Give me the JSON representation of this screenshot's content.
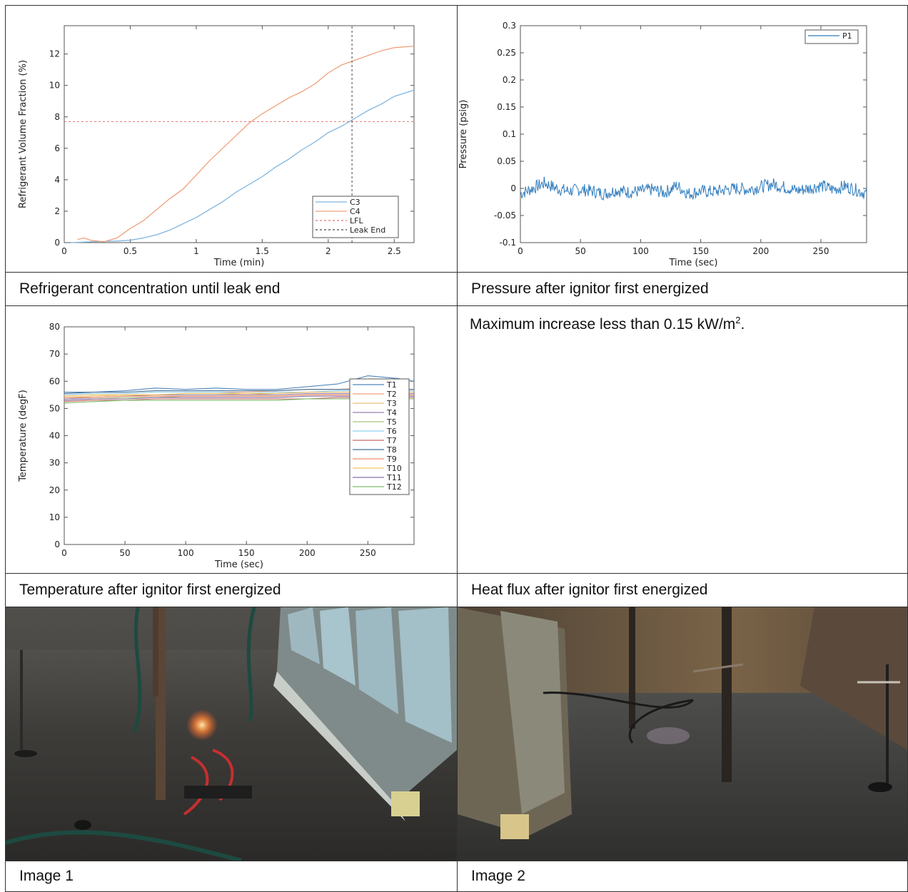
{
  "captions": {
    "concentration": "Refrigerant concentration until leak end",
    "pressure": "Pressure after ignitor first energized",
    "temperature": "Temperature after ignitor first energized",
    "heatflux": "Heat flux after ignitor first energized",
    "image1": "Image 1",
    "image2": "Image 2"
  },
  "heatflux_note": {
    "text": "Maximum increase less than 0.15 kW/m",
    "superscript": "2",
    "suffix": "."
  },
  "chart_data": [
    {
      "type": "line",
      "title": "",
      "xlabel": "Time (min)",
      "ylabel": "Refrigerant Volume Fraction (%)",
      "xlim": [
        0,
        2.65
      ],
      "ylim": [
        0,
        13.8
      ],
      "xticks": [
        0,
        0.5,
        1,
        1.5,
        2,
        2.5
      ],
      "xtick_labels": [
        "0",
        "0.5",
        "1",
        "1.5",
        "2",
        "2.5"
      ],
      "yticks": [
        0,
        2,
        4,
        6,
        8,
        10,
        12
      ],
      "grid": false,
      "legend_position": "lower-right",
      "series": [
        {
          "name": "C3",
          "color": "#7fb5e0",
          "dash": "solid",
          "x": [
            0.05,
            0.2,
            0.4,
            0.5,
            0.6,
            0.7,
            0.8,
            0.9,
            1.0,
            1.1,
            1.2,
            1.3,
            1.4,
            1.5,
            1.6,
            1.7,
            1.8,
            1.9,
            2.0,
            2.1,
            2.2,
            2.3,
            2.4,
            2.5,
            2.65
          ],
          "y": [
            0.0,
            0.05,
            0.1,
            0.15,
            0.3,
            0.5,
            0.8,
            1.2,
            1.6,
            2.1,
            2.6,
            3.2,
            3.7,
            4.2,
            4.8,
            5.3,
            5.9,
            6.4,
            7.0,
            7.4,
            7.9,
            8.4,
            8.8,
            9.3,
            9.7
          ]
        },
        {
          "name": "C4",
          "color": "#f0a07c",
          "dash": "solid",
          "x": [
            0.1,
            0.15,
            0.2,
            0.3,
            0.4,
            0.5,
            0.6,
            0.7,
            0.8,
            0.9,
            1.0,
            1.1,
            1.2,
            1.3,
            1.4,
            1.5,
            1.6,
            1.7,
            1.8,
            1.9,
            2.0,
            2.1,
            2.2,
            2.3,
            2.4,
            2.5,
            2.65
          ],
          "y": [
            0.2,
            0.3,
            0.15,
            0.05,
            0.3,
            0.9,
            1.4,
            2.1,
            2.8,
            3.4,
            4.3,
            5.2,
            6.0,
            6.8,
            7.6,
            8.2,
            8.7,
            9.2,
            9.6,
            10.1,
            10.8,
            11.3,
            11.6,
            11.9,
            12.2,
            12.4,
            12.5
          ]
        },
        {
          "name": "LFL",
          "color": "#e8756a",
          "dash": "dashed",
          "x": [
            0,
            2.65
          ],
          "y": [
            7.7,
            7.7
          ]
        },
        {
          "name": "Leak End",
          "color": "#444444",
          "dash": "dashed",
          "x": [
            2.18,
            2.18
          ],
          "y": [
            0,
            13.8
          ]
        }
      ]
    },
    {
      "type": "line",
      "title": "",
      "xlabel": "Time (sec)",
      "ylabel": "Pressure (psig)",
      "xlim": [
        0,
        288
      ],
      "ylim": [
        -0.1,
        0.3
      ],
      "xticks": [
        0,
        50,
        100,
        150,
        200,
        250
      ],
      "yticks": [
        -0.1,
        -0.05,
        0,
        0.05,
        0.1,
        0.15,
        0.2,
        0.25,
        0.3
      ],
      "ytick_labels": [
        "-0.1",
        "-0.05",
        "0",
        "0.05",
        "0.1",
        "0.15",
        "0.2",
        "0.25",
        "0.3"
      ],
      "grid": false,
      "legend_position": "top-right",
      "series": [
        {
          "name": "P1",
          "color": "#2e7bbd",
          "x": [
            0,
            10,
            20,
            30,
            40,
            50,
            60,
            70,
            80,
            90,
            100,
            110,
            120,
            130,
            140,
            150,
            160,
            170,
            180,
            190,
            200,
            210,
            220,
            230,
            240,
            250,
            260,
            270,
            280,
            288
          ],
          "y": [
            -0.01,
            0.0,
            0.01,
            0.0,
            -0.005,
            -0.002,
            -0.005,
            -0.01,
            -0.003,
            -0.007,
            -0.005,
            -0.002,
            -0.008,
            0.005,
            -0.01,
            -0.005,
            -0.006,
            -0.003,
            0.0,
            -0.002,
            0.003,
            0.008,
            0.002,
            -0.004,
            0.0,
            0.005,
            -0.002,
            0.004,
            -0.003,
            -0.01
          ],
          "noise_amplitude": 0.012
        }
      ]
    },
    {
      "type": "line",
      "title": "",
      "xlabel": "Time (sec)",
      "ylabel": "Temperature (degF)",
      "xlim": [
        0,
        288
      ],
      "ylim": [
        0,
        80
      ],
      "xticks": [
        0,
        50,
        100,
        150,
        200,
        250
      ],
      "yticks": [
        0,
        10,
        20,
        30,
        40,
        50,
        60,
        70,
        80
      ],
      "grid": false,
      "legend_position": "right",
      "x": [
        0,
        25,
        50,
        75,
        100,
        125,
        150,
        175,
        200,
        225,
        250,
        275,
        288
      ],
      "series": [
        {
          "name": "T1",
          "color": "#4f86bd",
          "values": [
            56,
            56,
            56.5,
            57.5,
            57,
            57.5,
            57,
            57,
            58,
            59,
            62,
            61,
            60
          ]
        },
        {
          "name": "T2",
          "color": "#f0a07c",
          "values": [
            55,
            55.5,
            55.5,
            56,
            56,
            56,
            56,
            56.5,
            57,
            57,
            57.5,
            57,
            57
          ]
        },
        {
          "name": "T3",
          "color": "#e8c078",
          "values": [
            54,
            54.5,
            55,
            55,
            55.5,
            55.5,
            55,
            55.5,
            56,
            56,
            56,
            56,
            56
          ]
        },
        {
          "name": "T4",
          "color": "#9a7fb0",
          "values": [
            53.5,
            54,
            54.5,
            55,
            55,
            55,
            55,
            55,
            55.5,
            55.5,
            55.5,
            55.5,
            55.5
          ]
        },
        {
          "name": "T5",
          "color": "#a6c47a",
          "values": [
            53,
            53.5,
            54,
            54,
            54.5,
            54.5,
            54.5,
            54.5,
            55,
            55,
            55,
            55,
            55
          ]
        },
        {
          "name": "T6",
          "color": "#8fd0ec",
          "values": [
            55,
            55.5,
            55.5,
            56,
            56,
            56,
            55.5,
            56,
            56,
            56.5,
            56.5,
            56.5,
            56.5
          ]
        },
        {
          "name": "T7",
          "color": "#c96b6b",
          "values": [
            52.5,
            53,
            53,
            53.5,
            53.5,
            53.5,
            53.5,
            53.5,
            53.5,
            54,
            54,
            54,
            54
          ]
        },
        {
          "name": "T8",
          "color": "#3f6f9a",
          "values": [
            55.5,
            56,
            56,
            56.5,
            56.5,
            56.5,
            56.5,
            56.5,
            57,
            57,
            57,
            57,
            57
          ]
        },
        {
          "name": "T9",
          "color": "#f28f6b",
          "values": [
            54,
            54,
            54.5,
            54.5,
            54.5,
            54.5,
            54.5,
            54.5,
            55,
            55,
            55,
            55,
            55
          ]
        },
        {
          "name": "T10",
          "color": "#f2c25e",
          "values": [
            54.5,
            55,
            55,
            55,
            55.5,
            55.5,
            55.5,
            55.5,
            56,
            56,
            56,
            56,
            56
          ]
        },
        {
          "name": "T11",
          "color": "#8a6fa8",
          "values": [
            53,
            53.5,
            53.5,
            54,
            54,
            54,
            54,
            54,
            54.5,
            54.5,
            54.5,
            54.5,
            54.5
          ]
        },
        {
          "name": "T12",
          "color": "#7cbf6a",
          "values": [
            52,
            52.5,
            53,
            53,
            53,
            53,
            53,
            53,
            53.5,
            53.5,
            53.5,
            53.5,
            53.5
          ]
        }
      ]
    }
  ]
}
